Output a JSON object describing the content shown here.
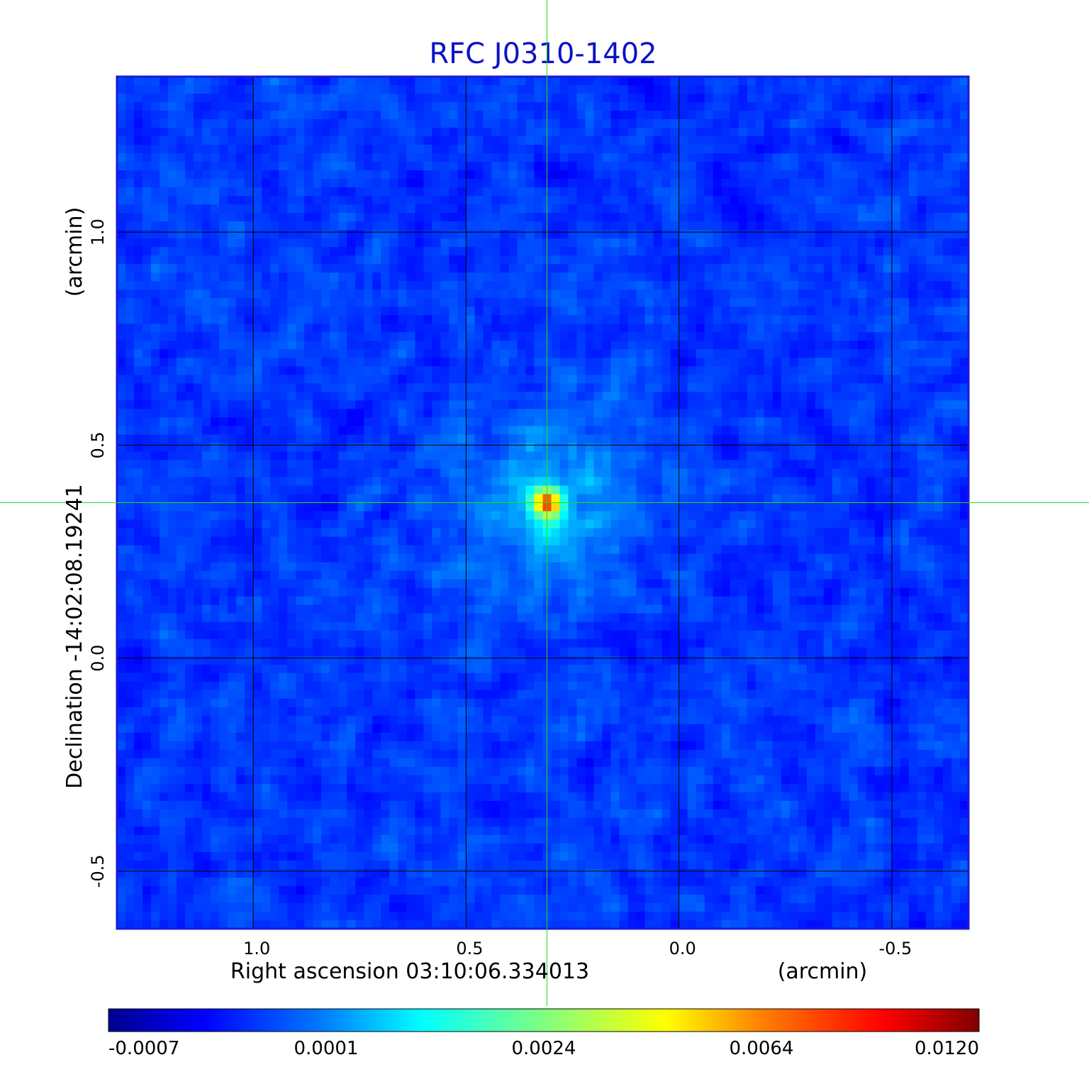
{
  "chart_data": {
    "type": "heatmap",
    "title": "RFC J0310-1402",
    "xlabel": "Right ascension  03:10:06.334013",
    "xunit": "(arcmin)",
    "ylabel": "Declination  -14:02:08.19241",
    "yunit": "(arcmin)",
    "xlim": [
      1.32,
      -0.68
    ],
    "ylim": [
      -0.635,
      1.365
    ],
    "x_ticks": [
      1.0,
      0.5,
      0.0,
      -0.5
    ],
    "x_tick_labels": [
      "1.0",
      "0.5",
      "0.0",
      "-0.5"
    ],
    "y_ticks": [
      1.0,
      0.5,
      0.0,
      -0.5
    ],
    "y_tick_labels": [
      "1.0",
      "0.5",
      "0.0",
      "-0.5"
    ],
    "grid": true,
    "crosshair": {
      "x": 0.31,
      "y": 0.365
    },
    "peak": {
      "x": 0.31,
      "y": 0.365,
      "value": 0.012
    },
    "colormap": "jet",
    "colorbar_ticks": [
      "-0.0007",
      "0.0001",
      "0.0024",
      "0.0064",
      "0.0120"
    ],
    "colors": {
      "title": "#0b12c8",
      "frame": "#1a1ad6",
      "grid": "#000000",
      "crosshair": "#22dd22"
    }
  }
}
